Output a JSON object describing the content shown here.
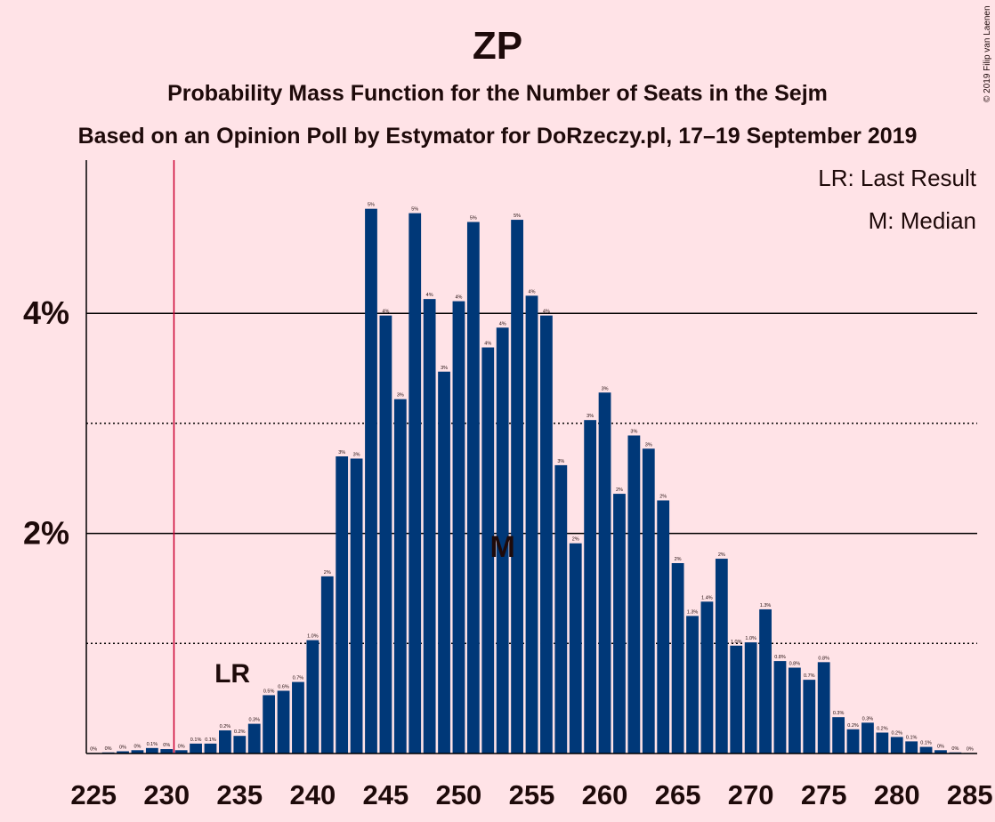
{
  "chart_data": {
    "type": "bar",
    "title": "ZP",
    "subtitle": "Probability Mass Function for the Number of Seats in the Sejm",
    "subtitle2": "Based on an Opinion Poll by Estymator for DoRzeczy.pl, 17–19 September 2019",
    "copyright": "© 2019 Filip van Laenen",
    "legend": [
      "LR: Last Result",
      "M: Median"
    ],
    "last_result": 230,
    "last_result_label": "LR",
    "median": 253,
    "median_label": "M",
    "xlim": [
      225,
      285
    ],
    "ylim": [
      0,
      5.4
    ],
    "x_ticks": [
      225,
      230,
      235,
      240,
      245,
      250,
      255,
      260,
      265,
      270,
      275,
      280,
      285
    ],
    "y_ticks": [
      {
        "value": 2,
        "label": "2%"
      },
      {
        "value": 4,
        "label": "4%"
      }
    ],
    "grid_solid": [
      2,
      4
    ],
    "grid_dotted": [
      1,
      3
    ],
    "bar_color": "#003878",
    "x": [
      225,
      226,
      227,
      228,
      229,
      230,
      231,
      232,
      233,
      234,
      235,
      236,
      237,
      238,
      239,
      240,
      241,
      242,
      243,
      244,
      245,
      246,
      247,
      248,
      249,
      250,
      251,
      252,
      253,
      254,
      255,
      256,
      257,
      258,
      259,
      260,
      261,
      262,
      263,
      264,
      265,
      266,
      267,
      268,
      269,
      270,
      271,
      272,
      273,
      274,
      275,
      276,
      277,
      278,
      279,
      280,
      281,
      282,
      283,
      284,
      285
    ],
    "values": [
      0.005,
      0.01,
      0.02,
      0.03,
      0.05,
      0.04,
      0.03,
      0.09,
      0.09,
      0.21,
      0.16,
      0.27,
      0.53,
      0.57,
      0.65,
      1.03,
      1.61,
      2.7,
      2.68,
      4.95,
      3.98,
      3.22,
      4.91,
      4.13,
      3.47,
      4.11,
      4.83,
      3.69,
      3.87,
      4.85,
      4.16,
      3.98,
      2.62,
      1.91,
      3.03,
      3.28,
      2.36,
      2.89,
      2.77,
      2.3,
      1.73,
      1.25,
      1.38,
      1.77,
      0.98,
      1.01,
      1.31,
      0.84,
      0.78,
      0.67,
      0.83,
      0.33,
      0.22,
      0.28,
      0.19,
      0.15,
      0.11,
      0.06,
      0.03,
      0.01,
      0.005
    ],
    "labels": [
      "0%",
      "0%",
      "0%",
      "0%",
      "0.1%",
      "0%",
      "0%",
      "0.1%",
      "0.1%",
      "0.2%",
      "0.2%",
      "0.3%",
      "0.5%",
      "0.6%",
      "0.7%",
      "1.0%",
      "2%",
      "3%",
      "3%",
      "5%",
      "4%",
      "3%",
      "5%",
      "4%",
      "3%",
      "4%",
      "5%",
      "4%",
      "4%",
      "5%",
      "4%",
      "4%",
      "3%",
      "2%",
      "3%",
      "3%",
      "2%",
      "3%",
      "3%",
      "2%",
      "2%",
      "1.3%",
      "1.4%",
      "2%",
      "1.0%",
      "1.0%",
      "1.3%",
      "0.8%",
      "0.8%",
      "0.7%",
      "0.8%",
      "0.3%",
      "0.2%",
      "0.3%",
      "0.2%",
      "0.2%",
      "0.1%",
      "0.1%",
      "0%",
      "0%",
      "0%"
    ]
  }
}
